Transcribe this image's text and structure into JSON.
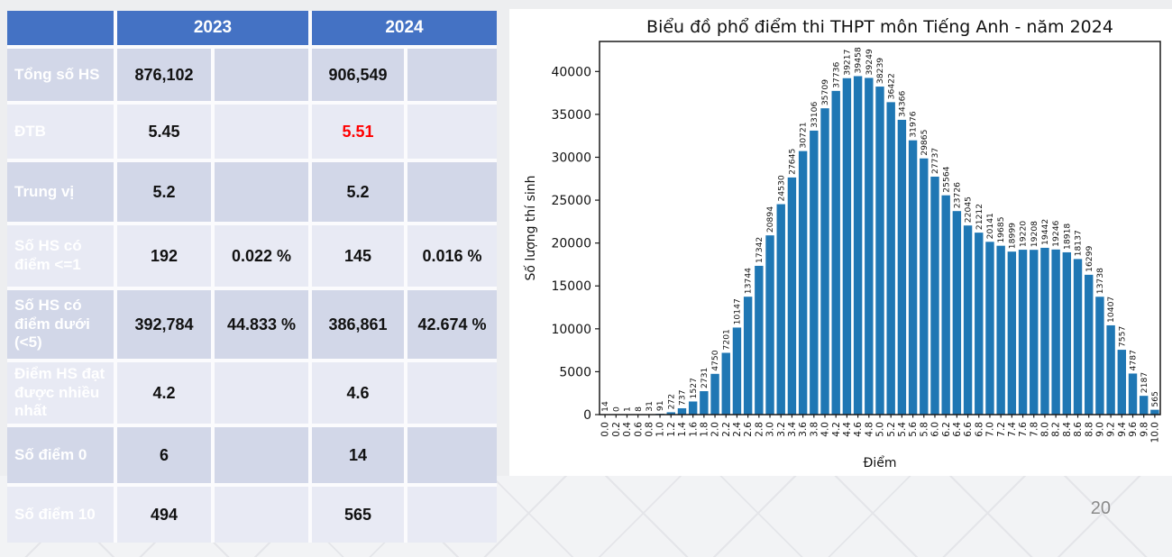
{
  "slide": {
    "page_number": "20"
  },
  "table": {
    "header": {
      "year_2023": "2023",
      "year_2024": "2024"
    },
    "rows": [
      {
        "label": "Tổng số HS",
        "v23": "876,102",
        "p23": "",
        "v24": "906,549",
        "p24": "",
        "red24": false
      },
      {
        "label": "ĐTB",
        "v23": "5.45",
        "p23": "",
        "v24": "5.51",
        "p24": "",
        "red24": true
      },
      {
        "label": "Trung vị",
        "v23": "5.2",
        "p23": "",
        "v24": "5.2",
        "p24": "",
        "red24": false
      },
      {
        "label": "Số HS có điểm <=1",
        "v23": "192",
        "p23": "0.022 %",
        "v24": "145",
        "p24": "0.016 %",
        "red24": false
      },
      {
        "label": "Số HS có điểm dưới (<5)",
        "v23": "392,784",
        "p23": "44.833 %",
        "v24": "386,861",
        "p24": "42.674 %",
        "red24": false
      },
      {
        "label": "Điểm HS đạt được nhiều nhất",
        "v23": "4.2",
        "p23": "",
        "v24": "4.6",
        "p24": "",
        "red24": false
      },
      {
        "label": "Số điểm 0",
        "v23": "6",
        "p23": "",
        "v24": "14",
        "p24": "",
        "red24": false
      },
      {
        "label": "Số điểm 10",
        "v23": "494",
        "p23": "",
        "v24": "565",
        "p24": "",
        "red24": false
      }
    ],
    "colors": {
      "header_blue": "#4472C4",
      "band_dark": "#D2D7E8",
      "band_light": "#E8EAF4",
      "highlight_red": "#FF0000"
    }
  },
  "chart_data": {
    "type": "bar",
    "title": "Biểu đồ phổ điểm thi THPT môn Tiếng Anh - năm 2024",
    "xlabel": "Điểm",
    "ylabel": "Số lượng thí sinh",
    "categories": [
      "0.0",
      "0.2",
      "0.4",
      "0.6",
      "0.8",
      "1.0",
      "1.2",
      "1.4",
      "1.6",
      "1.8",
      "2.0",
      "2.2",
      "2.4",
      "2.6",
      "2.8",
      "3.0",
      "3.2",
      "3.4",
      "3.6",
      "3.8",
      "4.0",
      "4.2",
      "4.4",
      "4.6",
      "4.8",
      "5.0",
      "5.2",
      "5.4",
      "5.6",
      "5.8",
      "6.0",
      "6.2",
      "6.4",
      "6.6",
      "6.8",
      "7.0",
      "7.2",
      "7.4",
      "7.6",
      "7.8",
      "8.0",
      "8.2",
      "8.4",
      "8.6",
      "8.8",
      "9.0",
      "9.2",
      "9.4",
      "9.6",
      "9.8",
      "10.0"
    ],
    "values": [
      14,
      0,
      1,
      8,
      31,
      91,
      272,
      737,
      1527,
      2731,
      4750,
      7201,
      10147,
      13744,
      17342,
      20894,
      24530,
      27645,
      30721,
      33106,
      35709,
      37736,
      39217,
      39458,
      39249,
      38239,
      36422,
      34366,
      31976,
      29865,
      27737,
      25564,
      23726,
      22045,
      21212,
      20141,
      19685,
      18999,
      19220,
      19208,
      19442,
      19246,
      18918,
      18137,
      16299,
      13738,
      10407,
      7557,
      4787,
      2187,
      565
    ],
    "ylim": [
      0,
      43500
    ],
    "yticks": [
      0,
      5000,
      10000,
      15000,
      20000,
      25000,
      30000,
      35000,
      40000
    ],
    "bar_color": "#1f77b4",
    "bar_labels": true,
    "grid": false,
    "legend": "none"
  }
}
